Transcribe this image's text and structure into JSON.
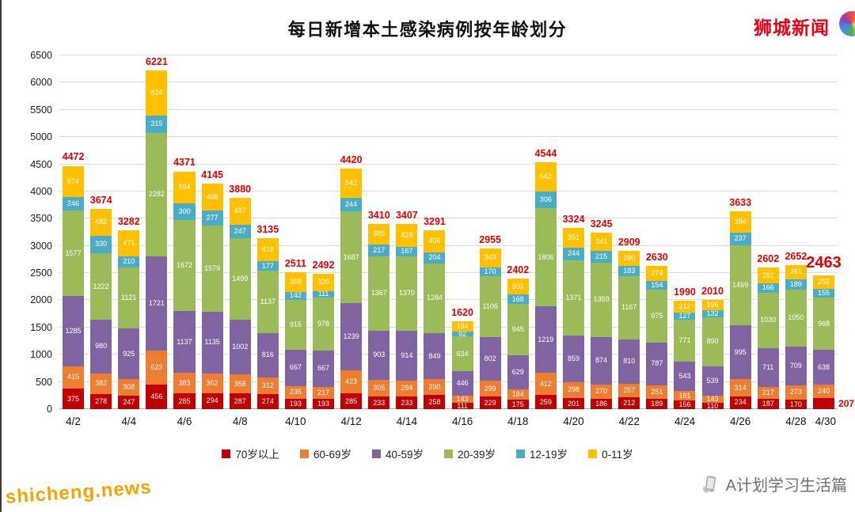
{
  "header": {
    "brand": "狮城新闻"
  },
  "icons": {
    "brand_logo": "colorful-ring-logo",
    "footer_icon": "phone-in-hand-icon"
  },
  "watermark": {
    "site": "shicheng.news"
  },
  "footer": {
    "credit": "A计划学习生活篇"
  },
  "chart_data": {
    "type": "bar",
    "variant": "stacked",
    "title": "每日新增本土感染病例按年龄划分",
    "xlabel": "",
    "ylabel": "",
    "ylim": [
      0,
      6500
    ],
    "ytick_step": 500,
    "grid": true,
    "legend_position": "bottom",
    "total_label_color": "#e10000",
    "highlight_last_total": true,
    "x_tick_labels": [
      "4/2",
      "4/4",
      "4/6",
      "4/8",
      "4/10",
      "4/12",
      "4/14",
      "4/16",
      "4/18",
      "4/20",
      "4/22",
      "4/24",
      "4/26",
      "4/28",
      "4/30"
    ],
    "categories": [
      "4/2",
      "4/3",
      "4/4",
      "4/5",
      "4/6",
      "4/7",
      "4/8",
      "4/9",
      "4/10",
      "4/11",
      "4/12",
      "4/13",
      "4/14",
      "4/15",
      "4/16",
      "4/17",
      "4/18",
      "4/19",
      "4/20",
      "4/21",
      "4/22",
      "4/23",
      "4/24",
      "4/25",
      "4/26",
      "4/27",
      "4/28",
      "4/29"
    ],
    "series": [
      {
        "key": "age70plus",
        "name": "70岁以上",
        "color": "#c00000",
        "values": [
          375,
          278,
          247,
          456,
          285,
          294,
          287,
          274,
          193,
          193,
          285,
          233,
          233,
          258,
          111,
          229,
          175,
          259,
          201,
          186,
          212,
          189,
          156,
          110,
          234,
          187,
          170,
          207
        ]
      },
      {
        "key": "age60to69",
        "name": "60-69岁",
        "color": "#ed7d31",
        "values": [
          415,
          382,
          308,
          623,
          383,
          362,
          358,
          312,
          235,
          217,
          423,
          305,
          294,
          290,
          143,
          299,
          184,
          412,
          298,
          270,
          257,
          251,
          181,
          143,
          314,
          217,
          273,
          240
        ]
      },
      {
        "key": "age40to59",
        "name": "40-59岁",
        "color": "#8064a2",
        "values": [
          1285,
          980,
          925,
          1721,
          1137,
          1135,
          1002,
          816,
          667,
          667,
          1239,
          903,
          914,
          849,
          446,
          802,
          629,
          1219,
          859,
          874,
          810,
          787,
          543,
          539,
          995,
          711,
          709,
          638
        ]
      },
      {
        "key": "age20to39",
        "name": "20-39岁",
        "color": "#9bbb59",
        "values": [
          1577,
          1222,
          1121,
          2282,
          1672,
          1579,
          1499,
          1137,
          915,
          978,
          1687,
          1367,
          1370,
          1284,
          634,
          1106,
          945,
          1806,
          1371,
          1359,
          1167,
          975,
          771,
          890,
          1469,
          1030,
          1050,
          968
        ]
      },
      {
        "key": "age12to19",
        "name": "12-19岁",
        "color": "#4bacc6",
        "values": [
          246,
          330,
          210,
          315,
          300,
          277,
          247,
          177,
          142,
          111,
          244,
          217,
          167,
          204,
          92,
          170,
          168,
          306,
          244,
          215,
          183,
          154,
          127,
          132,
          237,
          166,
          189,
          155
        ]
      },
      {
        "key": "age0to11",
        "name": "0-11岁",
        "color": "#ffc000",
        "values": [
          574,
          482,
          471,
          824,
          594,
          498,
          487,
          419,
          359,
          326,
          542,
          385,
          429,
          406,
          194,
          349,
          301,
          542,
          351,
          341,
          280,
          274,
          212,
          196,
          384,
          291,
          261,
          255
        ]
      }
    ],
    "totals": [
      4472,
      3674,
      3282,
      6221,
      4371,
      4145,
      3880,
      3135,
      2511,
      2492,
      4420,
      3410,
      3407,
      3291,
      1620,
      2955,
      2402,
      4544,
      3324,
      3245,
      2909,
      2630,
      1990,
      2010,
      3633,
      2602,
      2652,
      2463
    ]
  }
}
